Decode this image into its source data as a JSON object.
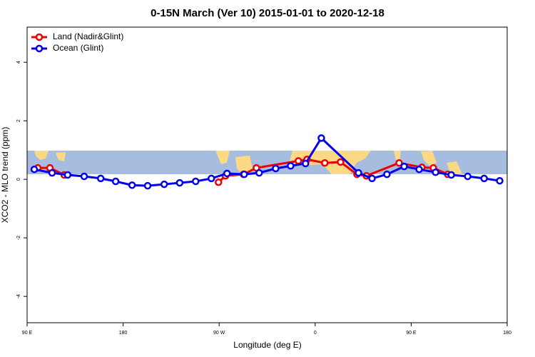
{
  "chart_data": {
    "type": "line",
    "title": "0-15N March (Ver 10)   2015-01-01 to 2020-12-18",
    "xlabel": "Longitude (deg E)",
    "ylabel": "XCO2 - MLO trend (ppm)",
    "xlim": [
      90,
      540
    ],
    "xticks": [
      {
        "value": 90,
        "label": "90 E"
      },
      180,
      {
        "value": 270,
        "label": "90 W"
      },
      {
        "value": 360,
        "label": "0"
      },
      {
        "value": 450,
        "label": "90 E"
      },
      {
        "value": 540,
        "label": "180"
      }
    ],
    "ylim": [
      -4.9,
      5.2
    ],
    "yticks": [
      -4,
      -2,
      0,
      2,
      4
    ],
    "legend": "top-left",
    "series": [
      {
        "name": "Land (Nadir&Glint)",
        "color": "#ee0000",
        "x": [
          100,
          111.4,
          124.8,
          269.4,
          276,
          292.8,
          304.9,
          344.3,
          352.4,
          369,
          383.8,
          399.2,
          408,
          438.7,
          460,
          470.8,
          484.2
        ],
        "values": [
          0.39,
          0.39,
          0.15,
          -0.1,
          0.12,
          0.17,
          0.39,
          0.63,
          0.68,
          0.56,
          0.59,
          0.17,
          0.12,
          0.56,
          0.41,
          0.39,
          0.17
        ]
      },
      {
        "name": "Ocean (Glint)",
        "color": "#0000ee",
        "x": [
          96.7,
          113.4,
          128,
          143.5,
          159,
          173,
          188.4,
          203,
          218.5,
          233,
          248,
          262.7,
          277.4,
          293.5,
          307.5,
          323,
          337,
          351,
          365.8,
          400.6,
          413.3,
          427.3,
          443.4,
          457.5,
          472.9,
          487.6,
          503,
          518.4,
          533
        ],
        "values": [
          0.34,
          0.22,
          0.15,
          0.1,
          0.03,
          -0.07,
          -0.2,
          -0.22,
          -0.17,
          -0.12,
          -0.07,
          0.03,
          0.2,
          0.17,
          0.22,
          0.37,
          0.46,
          0.54,
          1.41,
          0.22,
          0.03,
          0.17,
          0.44,
          0.34,
          0.24,
          0.15,
          0.1,
          0.03,
          -0.05
        ]
      }
    ]
  }
}
